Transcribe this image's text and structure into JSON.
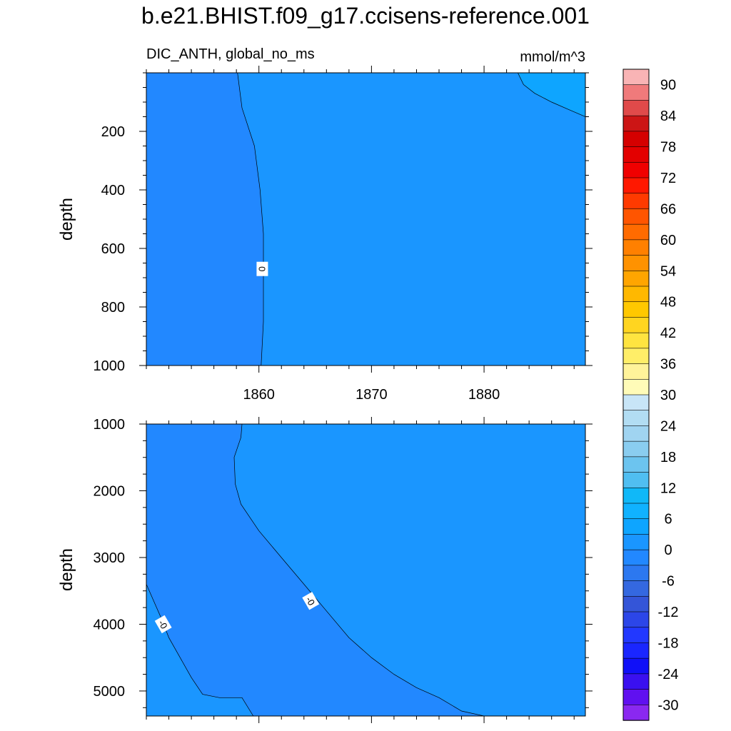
{
  "title": "b.e21.BHIST.f09_g17.ccisens-reference.001",
  "variable_label": "DIC_ANTH, global_no_ms",
  "units_label": "mmol/m^3",
  "chart_data": [
    {
      "type": "contour",
      "panel": "upper",
      "ylabel": "depth",
      "x_range": [
        1850,
        1889
      ],
      "y_range": [
        0,
        1000
      ],
      "y_reversed": true,
      "x_ticks": [
        1860,
        1870,
        1880
      ],
      "x_tick_labels": [
        "1860",
        "1870",
        "1880"
      ],
      "y_ticks": [
        200,
        400,
        600,
        800,
        1000
      ],
      "y_tick_labels": [
        "200",
        "400",
        "600",
        "800",
        "1000"
      ],
      "background_level": "0 to 3",
      "regions": [
        {
          "level": "-3 to 0",
          "color": "#2288ff",
          "boundary": [
            [
              1858.1,
              0
            ],
            [
              1858.5,
              120
            ],
            [
              1859.6,
              250
            ],
            [
              1860.1,
              400
            ],
            [
              1860.4,
              550
            ],
            [
              1860.4,
              700
            ],
            [
              1860.4,
              850
            ],
            [
              1860.2,
              1000
            ],
            [
              1850,
              1000
            ],
            [
              1850,
              0
            ]
          ]
        },
        {
          "level": "3 to 6",
          "color": "#0ea5ff",
          "boundary": [
            [
              1883.0,
              0
            ],
            [
              1883.5,
              40
            ],
            [
              1884.5,
              70
            ],
            [
              1886.0,
              100
            ],
            [
              1887.5,
              125
            ],
            [
              1889,
              150
            ],
            [
              1889,
              0
            ]
          ]
        }
      ],
      "contour_labels": [
        {
          "text": "0",
          "x": 1860.3,
          "y": 670
        }
      ]
    },
    {
      "type": "contour",
      "panel": "lower",
      "ylabel": "depth",
      "x_range": [
        1850,
        1889
      ],
      "y_range": [
        1000,
        5375
      ],
      "y_reversed": true,
      "x_ticks": [
        1860,
        1870,
        1880
      ],
      "y_ticks": [
        1000,
        2000,
        3000,
        4000,
        5000
      ],
      "y_tick_labels": [
        "1000",
        "2000",
        "3000",
        "4000",
        "5000"
      ],
      "background_level": "0 to 3",
      "regions": [
        {
          "level": "-3 to 0",
          "color": "#2288ff",
          "boundary": [
            [
              1850,
              1000
            ],
            [
              1858.5,
              1000
            ],
            [
              1858.4,
              1200
            ],
            [
              1857.8,
              1500
            ],
            [
              1857.9,
              1900
            ],
            [
              1858.4,
              2200
            ],
            [
              1860,
              2600
            ],
            [
              1862,
              3000
            ],
            [
              1864,
              3400
            ],
            [
              1866,
              3800
            ],
            [
              1868,
              4200
            ],
            [
              1870,
              4500
            ],
            [
              1872,
              4750
            ],
            [
              1874,
              4950
            ],
            [
              1876,
              5100
            ],
            [
              1878,
              5300
            ],
            [
              1880,
              5375
            ],
            [
              1859.5,
              5375
            ],
            [
              1858.5,
              5100
            ],
            [
              1856.5,
              5100
            ],
            [
              1855,
              5050
            ],
            [
              1854,
              4800
            ],
            [
              1853,
              4500
            ],
            [
              1852,
              4200
            ],
            [
              1851.3,
              3900
            ],
            [
              1850,
              3400
            ]
          ]
        }
      ],
      "contour_labels": [
        {
          "text": "-0",
          "x": 1864.6,
          "y": 3650
        },
        {
          "text": "-0",
          "x": 1851.5,
          "y": 4000
        }
      ]
    }
  ],
  "colorbar": {
    "labels": [
      "90",
      "84",
      "78",
      "72",
      "66",
      "60",
      "54",
      "48",
      "42",
      "36",
      "30",
      "24",
      "18",
      "12",
      "6",
      "0",
      "-6",
      "-12",
      "-18",
      "-24",
      "-30"
    ],
    "colors": [
      "#f9b4b5",
      "#f07a7b",
      "#e04a4a",
      "#cc1515",
      "#d50000",
      "#e30000",
      "#f00000",
      "#ff1800",
      "#ff3a00",
      "#ff5500",
      "#ff6b00",
      "#ff8000",
      "#ff9200",
      "#ffa500",
      "#ffb800",
      "#ffc800",
      "#ffd520",
      "#ffe440",
      "#ffee68",
      "#fff39a",
      "#fffbb8",
      "#c8e5f7",
      "#b2ddf3",
      "#a0d4f1",
      "#8acdf0",
      "#6cc4ef",
      "#50bef1",
      "#10b8f8",
      "#10b2ff",
      "#0ea5ff",
      "#1a96ff",
      "#2288ff",
      "#2c78f0",
      "#3468e0",
      "#3455d8",
      "#2c46e8",
      "#2238ff",
      "#1a26ff",
      "#1010f8",
      "#3a10f0",
      "#6010f0",
      "#8a28f0"
    ]
  }
}
